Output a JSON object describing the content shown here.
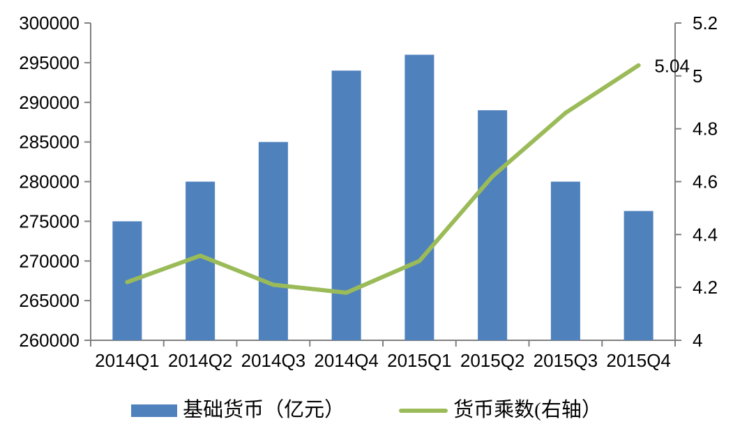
{
  "chart_data": {
    "type": "combo",
    "title": "",
    "categories": [
      "2014Q1",
      "2014Q2",
      "2014Q3",
      "2014Q4",
      "2015Q1",
      "2015Q2",
      "2015Q3",
      "2015Q4"
    ],
    "series": [
      {
        "name": "基础货币（亿元）",
        "type": "bar",
        "axis": "left",
        "color": "#4F81BD",
        "values": [
          275000,
          280000,
          285000,
          294000,
          296000,
          289000,
          280000,
          276300
        ]
      },
      {
        "name": "货币乘数(右轴）",
        "type": "line",
        "axis": "right",
        "color": "#9BBB59",
        "values": [
          4.22,
          4.32,
          4.21,
          4.18,
          4.3,
          4.62,
          4.86,
          5.04
        ]
      }
    ],
    "left_axis": {
      "min": 260000,
      "max": 300000,
      "step": 5000,
      "tick_labels": [
        "300000",
        "295000",
        "290000",
        "285000",
        "280000",
        "275000",
        "270000",
        "265000",
        "260000"
      ]
    },
    "right_axis": {
      "min": 4,
      "max": 5.2,
      "step": 0.2,
      "tick_labels": [
        "5.2",
        "5",
        "4.8",
        "4.6",
        "4.4",
        "4.2",
        "4"
      ]
    },
    "annotation": {
      "text": "5.04",
      "series_index": 1,
      "point_index": 7
    },
    "grid": false,
    "legend_position": "bottom"
  },
  "colors": {
    "bar": "#4F81BD",
    "line": "#9BBB59",
    "axis": "#7F7F7F",
    "text": "#000000"
  },
  "legend": {
    "items": [
      {
        "label": "基础货币（亿元）",
        "swatch": "bar"
      },
      {
        "label": "货币乘数(右轴）",
        "swatch": "line"
      }
    ]
  }
}
